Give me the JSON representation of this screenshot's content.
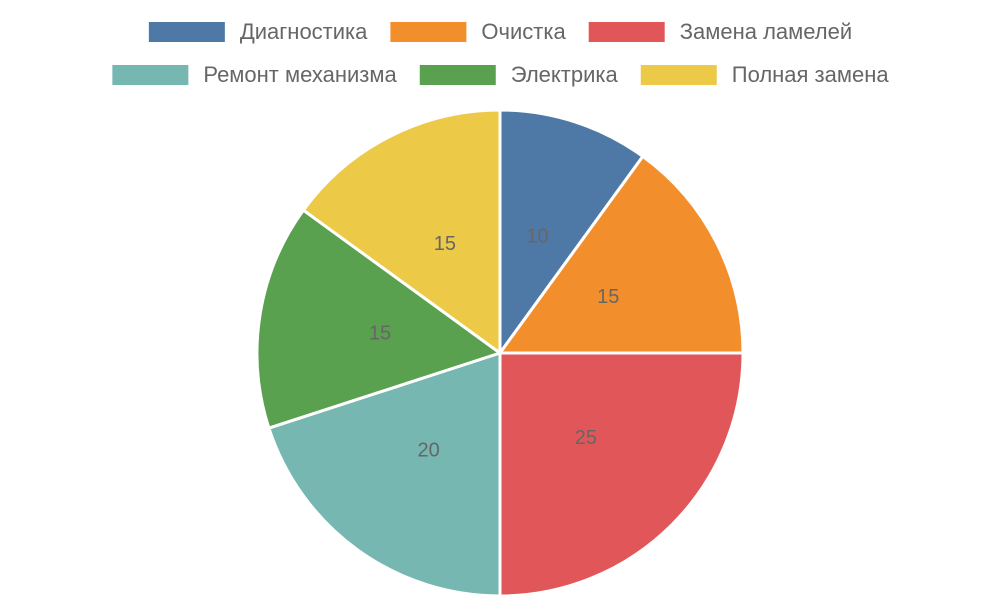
{
  "chart_data": {
    "type": "pie",
    "categories": [
      "Диагностика",
      "Очистка",
      "Замена ламелей",
      "Ремонт механизма",
      "Электрика",
      "Полная замена"
    ],
    "values": [
      10,
      15,
      25,
      20,
      15,
      15
    ],
    "colors": [
      "#4e79a7",
      "#f28e2b",
      "#e15759",
      "#76b7b2",
      "#59a14f",
      "#edc948"
    ],
    "legend": "top"
  }
}
